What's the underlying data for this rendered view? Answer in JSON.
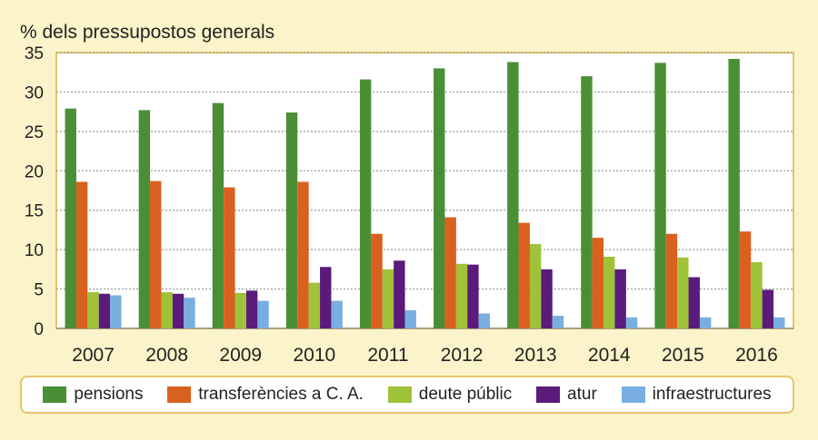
{
  "chart_data": {
    "type": "bar",
    "ylabel": "% dels pressupostos generals",
    "xlabel": "",
    "ylim": [
      0,
      35
    ],
    "yticks": [
      0,
      5,
      10,
      15,
      20,
      25,
      30,
      35
    ],
    "grid": true,
    "legend_position": "bottom",
    "categories": [
      "2007",
      "2008",
      "2009",
      "2010",
      "2011",
      "2012",
      "2013",
      "2014",
      "2015",
      "2016"
    ],
    "series": [
      {
        "name": "pensions",
        "color": "#4a8f35",
        "values": [
          27.9,
          27.7,
          28.6,
          27.4,
          31.6,
          33.0,
          33.8,
          32.0,
          33.7,
          34.2
        ]
      },
      {
        "name": "transferències a C. A.",
        "color": "#d9601e",
        "values": [
          18.6,
          18.7,
          17.9,
          18.6,
          12.0,
          14.1,
          13.4,
          11.5,
          12.0,
          12.3
        ]
      },
      {
        "name": "deute públic",
        "color": "#9fc239",
        "values": [
          4.6,
          4.6,
          4.5,
          5.8,
          7.5,
          8.2,
          10.7,
          9.1,
          9.0,
          8.4
        ]
      },
      {
        "name": "atur",
        "color": "#5a1b7a",
        "values": [
          4.4,
          4.4,
          4.8,
          7.8,
          8.6,
          8.1,
          7.5,
          7.5,
          6.5,
          4.9
        ]
      },
      {
        "name": "infraestructures",
        "color": "#79aee0",
        "values": [
          4.2,
          3.9,
          3.5,
          3.5,
          2.3,
          1.9,
          1.6,
          1.4,
          1.4,
          1.4
        ]
      }
    ]
  }
}
